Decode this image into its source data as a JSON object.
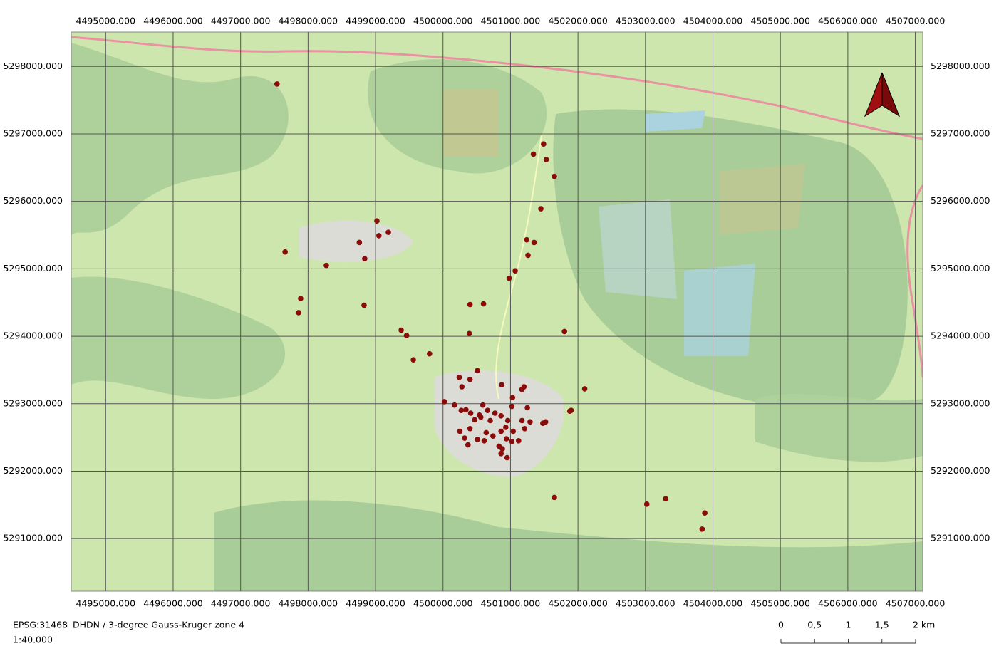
{
  "map": {
    "xlim": [
      4494490,
      4507110
    ],
    "ylim": [
      5290220,
      5298510
    ],
    "xticks": [
      {
        "value": 4495000,
        "label": "4495000.000"
      },
      {
        "value": 4496000,
        "label": "4496000.000"
      },
      {
        "value": 4497000,
        "label": "4497000.000"
      },
      {
        "value": 4498000,
        "label": "4498000.000"
      },
      {
        "value": 4499000,
        "label": "4499000.000"
      },
      {
        "value": 4500000,
        "label": "4500000.000"
      },
      {
        "value": 4501000,
        "label": "4501000.000"
      },
      {
        "value": 4502000,
        "label": "4502000.000"
      },
      {
        "value": 4503000,
        "label": "4503000.000"
      },
      {
        "value": 4504000,
        "label": "4504000.000"
      },
      {
        "value": 4505000,
        "label": "4505000.000"
      },
      {
        "value": 4506000,
        "label": "4506000.000"
      },
      {
        "value": 4507000,
        "label": "4507000.000"
      }
    ],
    "yticks": [
      {
        "value": 5291000,
        "label": "5291000.000"
      },
      {
        "value": 5292000,
        "label": "5292000.000"
      },
      {
        "value": 5293000,
        "label": "5293000.000"
      },
      {
        "value": 5294000,
        "label": "5294000.000"
      },
      {
        "value": 5295000,
        "label": "5295000.000"
      },
      {
        "value": 5296000,
        "label": "5296000.000"
      },
      {
        "value": 5297000,
        "label": "5297000.000"
      },
      {
        "value": 5298000,
        "label": "5298000.000"
      }
    ],
    "point_color": "#8b0a0a",
    "points": {
      "x": [
        4497540,
        4501490,
        4501340,
        4501530,
        4501650,
        4501450,
        4499020,
        4499190,
        4499050,
        4501240,
        4501350,
        4498760,
        4497660,
        4501260,
        4498840,
        4498270,
        4501070,
        4500980,
        4497890,
        4497860,
        4498830,
        4500400,
        4500600,
        4499380,
        4499460,
        4500390,
        4501800,
        4499800,
        4499560,
        4500240,
        4500510,
        4500400,
        4500280,
        4500870,
        4501200,
        4501170,
        4502100,
        4500020,
        4500170,
        4501030,
        4500270,
        4500340,
        4500410,
        4500590,
        4500660,
        4500540,
        4500770,
        4501020,
        4501250,
        4501900,
        4501880,
        4500470,
        4500700,
        4500860,
        4500560,
        4500960,
        4501170,
        4501290,
        4501520,
        4501480,
        4500250,
        4500400,
        4500640,
        4500740,
        4500930,
        4500860,
        4501040,
        4501210,
        4500320,
        4500510,
        4500370,
        4500610,
        4500940,
        4501020,
        4500830,
        4500880,
        4500860,
        4500950,
        4501120,
        4501650,
        4503020,
        4503300,
        4503880,
        4503840
      ],
      "y": [
        5297740,
        5296850,
        5296700,
        5296620,
        5296370,
        5295890,
        5295710,
        5295540,
        5295490,
        5295430,
        5295390,
        5295390,
        5295250,
        5295200,
        5295150,
        5295050,
        5294970,
        5294860,
        5294560,
        5294350,
        5294460,
        5294470,
        5294480,
        5294090,
        5294010,
        5294040,
        5294070,
        5293740,
        5293650,
        5293390,
        5293490,
        5293360,
        5293250,
        5293280,
        5293250,
        5293210,
        5293220,
        5293030,
        5292980,
        5293090,
        5292900,
        5292910,
        5292860,
        5292980,
        5292900,
        5292830,
        5292860,
        5292960,
        5292940,
        5292900,
        5292890,
        5292760,
        5292750,
        5292820,
        5292800,
        5292750,
        5292750,
        5292730,
        5292730,
        5292710,
        5292590,
        5292630,
        5292570,
        5292520,
        5292650,
        5292590,
        5292590,
        5292630,
        5292490,
        5292470,
        5292390,
        5292450,
        5292480,
        5292440,
        5292370,
        5292330,
        5292260,
        5292200,
        5292450,
        5291610,
        5291510,
        5291590,
        5291380,
        5291140
      ]
    }
  },
  "footer": {
    "crs_code": "EPSG:31468",
    "crs_name": "DHDN / 3-degree Gauss-Kruger zone 4",
    "scale": "1:40.000"
  },
  "scale_bar": {
    "labels": [
      "0",
      "0,5",
      "1",
      "1,5",
      "2 km"
    ]
  }
}
